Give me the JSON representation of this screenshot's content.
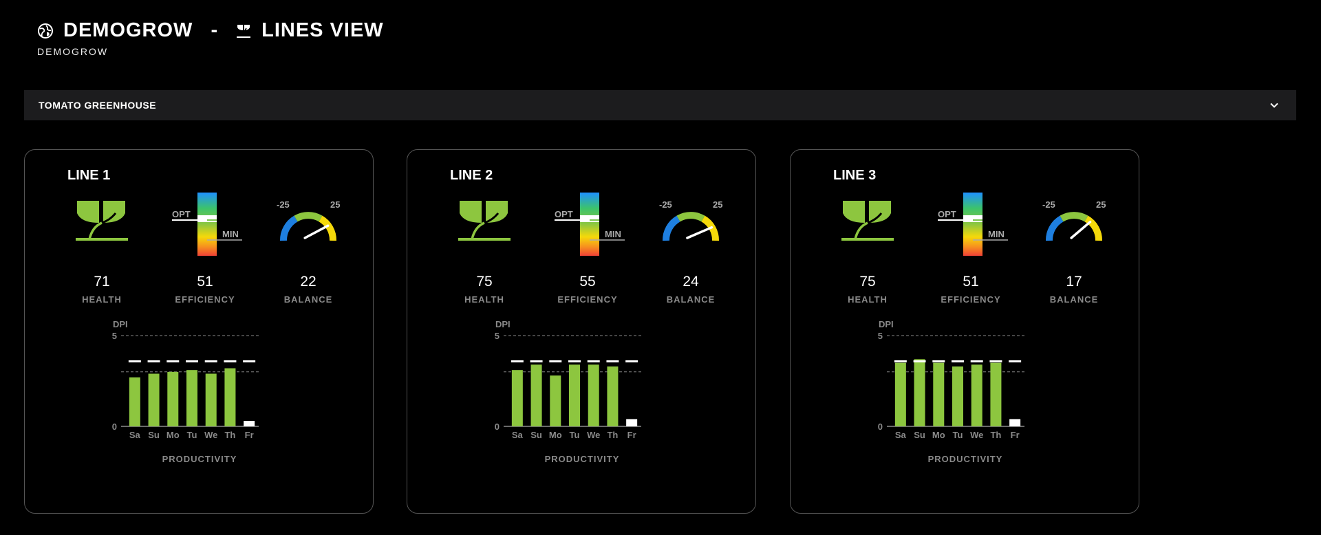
{
  "header": {
    "app_name": "DEMOGROW",
    "separator": "-",
    "view_title": "LINES VIEW",
    "subtitle": "DEMOGROW",
    "app_icon": "globe-leaf-icon",
    "view_icon": "sprout-icon"
  },
  "selector": {
    "value": "TOMATO GREENHOUSE",
    "icon": "chevron-down-icon"
  },
  "colors": {
    "green": "#8dc63f",
    "accent_white": "#ffffff",
    "label_gray": "#8a8a8a",
    "card_border": "#555555",
    "selector_bg": "#1c1c1e"
  },
  "metric_labels": {
    "health": "HEALTH",
    "efficiency": "EFFICIENCY",
    "balance": "BALANCE",
    "opt": "OPT",
    "min": "MIN",
    "gauge_min": "-25",
    "gauge_max": "25",
    "productivity": "PRODUCTIVITY"
  },
  "lines": [
    {
      "name": "LINE 1",
      "health": "71",
      "efficiency": "51",
      "balance": "22"
    },
    {
      "name": "LINE 2",
      "health": "75",
      "efficiency": "55",
      "balance": "24"
    },
    {
      "name": "LINE 3",
      "health": "75",
      "efficiency": "51",
      "balance": "17"
    }
  ],
  "chart_data": [
    {
      "type": "bar",
      "ylabel": "DPI",
      "ylim": [
        0,
        5
      ],
      "yticks": [
        "5",
        "0"
      ],
      "categories": [
        "Sa",
        "Su",
        "Mo",
        "Tu",
        "We",
        "Th",
        "Fr"
      ],
      "values": [
        2.7,
        2.9,
        3.0,
        3.1,
        2.9,
        3.2,
        0.3
      ],
      "target": 3.6,
      "reference_line": 3.0
    },
    {
      "type": "bar",
      "ylabel": "DPI",
      "ylim": [
        0,
        5
      ],
      "yticks": [
        "5",
        "0"
      ],
      "categories": [
        "Sa",
        "Su",
        "Mo",
        "Tu",
        "We",
        "Th",
        "Fr"
      ],
      "values": [
        3.1,
        3.4,
        2.8,
        3.4,
        3.4,
        3.3,
        0.4
      ],
      "target": 3.6,
      "reference_line": 3.0
    },
    {
      "type": "bar",
      "ylabel": "DPI",
      "ylim": [
        0,
        5
      ],
      "yticks": [
        "5",
        "0"
      ],
      "categories": [
        "Sa",
        "Su",
        "Mo",
        "Tu",
        "We",
        "Th",
        "Fr"
      ],
      "values": [
        3.5,
        3.7,
        3.5,
        3.3,
        3.4,
        3.5,
        0.4
      ],
      "target": 3.6,
      "reference_line": 3.0
    }
  ]
}
